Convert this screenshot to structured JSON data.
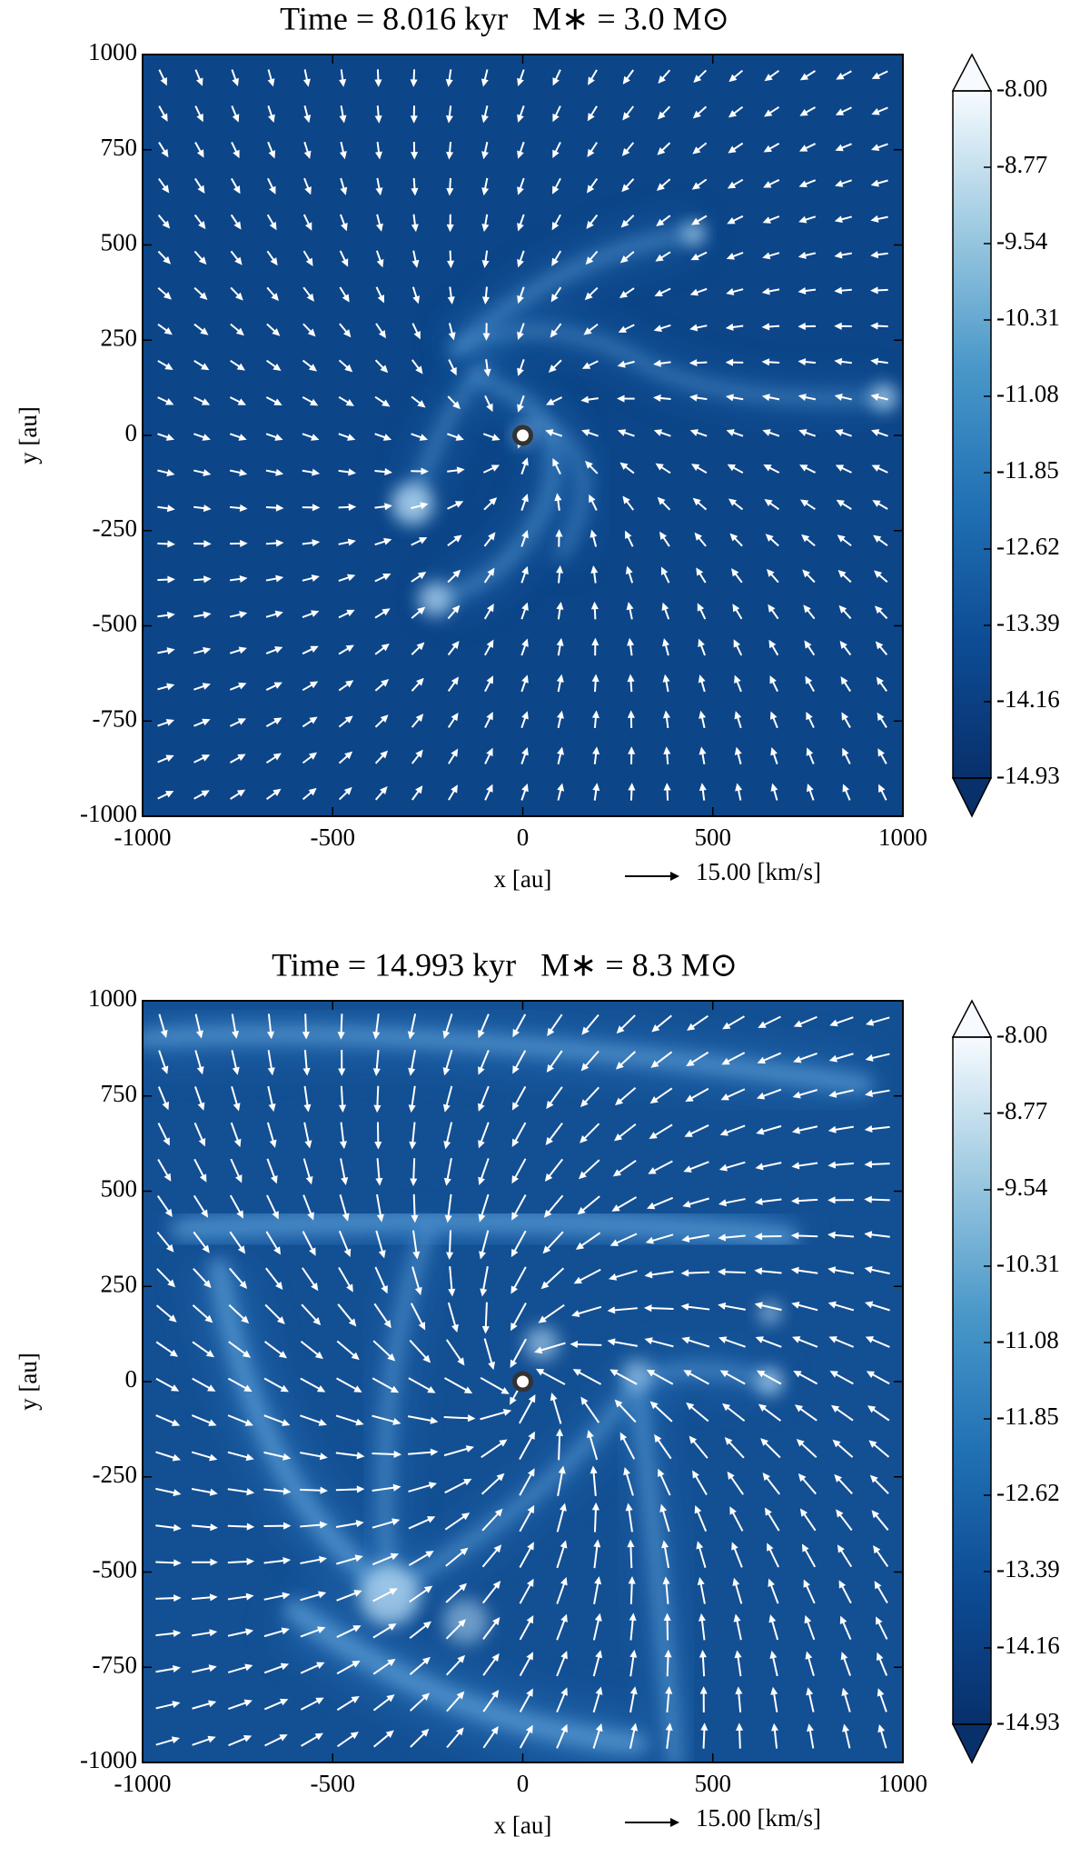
{
  "chart_data": [
    {
      "type": "heatmap",
      "title": "Time = 8.016 kyr   M∗ = 3.0 M⊙",
      "xlabel": "x [au]",
      "ylabel": "y [au]",
      "xlim": [
        -1000,
        1000
      ],
      "ylim": [
        -1000,
        1000
      ],
      "xticks": [
        -1000,
        -500,
        0,
        500,
        1000
      ],
      "yticks": [
        -1000,
        -750,
        -500,
        -250,
        0,
        250,
        500,
        750,
        1000
      ],
      "colorbar": {
        "lim": [
          -14.93,
          -8
        ],
        "ticks": [
          {
            "value": -8,
            "label": "-8.00"
          },
          -8.77,
          -9.54,
          -10.31,
          -11.08,
          -11.85,
          -12.62,
          -13.39,
          -14.16,
          -14.93
        ]
      },
      "quiver_key": "15.00 [km/s]",
      "star": {
        "x": 0,
        "y": 0
      }
    },
    {
      "type": "heatmap",
      "title": "Time = 14.993 kyr   M∗ = 8.3 M⊙",
      "xlabel": "x [au]",
      "ylabel": "y [au]",
      "xlim": [
        -1000,
        1000
      ],
      "ylim": [
        -1000,
        1000
      ],
      "xticks": [
        -1000,
        -500,
        0,
        500,
        1000
      ],
      "yticks": [
        -1000,
        -750,
        -500,
        -250,
        0,
        250,
        500,
        750,
        1000
      ],
      "colorbar": {
        "lim": [
          -14.93,
          -8
        ],
        "ticks": [
          {
            "value": -8,
            "label": "-8.00"
          },
          -8.77,
          -9.54,
          -10.31,
          -11.08,
          -11.85,
          -12.62,
          -13.39,
          -14.16,
          -14.93
        ]
      },
      "quiver_key": "15.00 [km/s]",
      "star": {
        "x": 0,
        "y": 0
      }
    }
  ]
}
